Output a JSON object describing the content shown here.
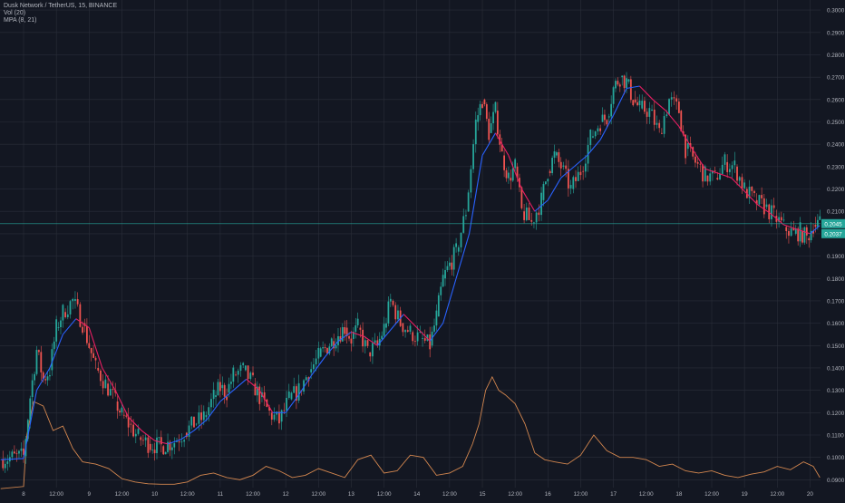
{
  "legend": {
    "symbol_line": "Dusk Network / TetherUS, 15, BINANCE",
    "volume_line": "Vol (20)",
    "ma_line": "MPA (8, 21)"
  },
  "price_tags": {
    "last_price": "0.2045",
    "ma_value": "0.2037"
  },
  "colors": {
    "background": "#131722",
    "grid": "#2a2e39",
    "candle_up": "#26a69a",
    "candle_down": "#ef5350",
    "ma_fast": "#2962ff",
    "ma_slow": "#e91e63",
    "volume_line": "#d4874f",
    "price_line": "#26a69a"
  },
  "chart_data": {
    "type": "line",
    "title": "Dusk Network / TetherUS, 15, BINANCE",
    "y_axis": {
      "labels": [
        "0.3000",
        "0.2900",
        "0.2800",
        "0.2700",
        "0.2600",
        "0.2500",
        "0.2400",
        "0.2300",
        "0.2200",
        "0.2100",
        "0.2000",
        "0.1900",
        "0.1800",
        "0.1700",
        "0.1600",
        "0.1500",
        "0.1400",
        "0.1300",
        "0.1200",
        "0.1100",
        "0.1000",
        "0.0900"
      ],
      "range": [
        0.0865,
        0.3045
      ],
      "side": "right"
    },
    "x_axis": {
      "labels": [
        "8",
        "12:00",
        "9",
        "12:00",
        "10",
        "12:00",
        "11",
        "12:00",
        "12",
        "12:00",
        "13",
        "12:00",
        "14",
        "12:00",
        "15",
        "12:00",
        "16",
        "12:00",
        "17",
        "12:00",
        "18",
        "12:00",
        "19",
        "12:00",
        "20"
      ],
      "range": [
        7.64,
        20.16
      ]
    },
    "grid": true,
    "series": [
      {
        "name": "price",
        "style": "candles",
        "x": [
          7.65,
          8.0,
          8.1,
          8.2,
          8.3,
          8.4,
          8.5,
          8.6,
          8.75,
          8.9,
          9.1,
          9.25,
          9.4,
          9.5,
          9.6,
          9.75,
          9.9,
          10.1,
          10.3,
          10.45,
          10.6,
          10.75,
          10.9,
          11.0,
          11.1,
          11.2,
          11.35,
          11.5,
          11.6,
          11.75,
          11.9,
          12.05,
          12.2,
          12.35,
          12.5,
          12.7,
          12.9,
          13.0,
          13.1,
          13.25,
          13.4,
          13.5,
          13.6,
          13.75,
          13.9,
          14.05,
          14.2,
          14.3,
          14.4,
          14.6,
          14.75,
          14.9,
          15.0,
          15.1,
          15.2,
          15.3,
          15.4,
          15.5,
          15.6,
          15.75,
          15.9,
          16.0,
          16.1,
          16.2,
          16.35,
          16.5,
          16.65,
          16.8,
          16.9,
          17.0,
          17.1,
          17.2,
          17.3,
          17.4,
          17.55,
          17.7,
          17.85,
          18.0,
          18.1,
          18.25,
          18.4,
          18.55,
          18.7,
          18.85,
          19.0,
          19.15,
          19.3,
          19.45,
          19.6,
          19.75,
          19.85,
          19.95,
          20.05,
          20.15
        ],
        "values": [
          0.0993,
          0.1005,
          0.127,
          0.148,
          0.135,
          0.139,
          0.158,
          0.165,
          0.17,
          0.16,
          0.14,
          0.133,
          0.125,
          0.119,
          0.115,
          0.109,
          0.106,
          0.105,
          0.107,
          0.111,
          0.115,
          0.118,
          0.127,
          0.131,
          0.129,
          0.137,
          0.139,
          0.133,
          0.127,
          0.12,
          0.116,
          0.126,
          0.13,
          0.138,
          0.145,
          0.152,
          0.158,
          0.153,
          0.158,
          0.147,
          0.15,
          0.158,
          0.17,
          0.16,
          0.156,
          0.153,
          0.15,
          0.163,
          0.18,
          0.192,
          0.21,
          0.25,
          0.26,
          0.245,
          0.255,
          0.235,
          0.225,
          0.23,
          0.21,
          0.205,
          0.215,
          0.228,
          0.235,
          0.23,
          0.22,
          0.228,
          0.243,
          0.25,
          0.252,
          0.265,
          0.27,
          0.268,
          0.26,
          0.256,
          0.255,
          0.245,
          0.26,
          0.255,
          0.238,
          0.232,
          0.226,
          0.225,
          0.232,
          0.23,
          0.22,
          0.215,
          0.212,
          0.208,
          0.203,
          0.2,
          0.201,
          0.198,
          0.204,
          0.2045
        ]
      },
      {
        "name": "MPA (8, 21)",
        "style": "line",
        "x": [
          7.65,
          8.0,
          8.2,
          8.4,
          8.6,
          8.8,
          9.0,
          9.2,
          9.4,
          9.6,
          9.8,
          10.0,
          10.2,
          10.4,
          10.6,
          10.8,
          11.0,
          11.2,
          11.4,
          11.6,
          11.8,
          12.0,
          12.2,
          12.4,
          12.6,
          12.8,
          13.0,
          13.2,
          13.4,
          13.6,
          13.8,
          14.0,
          14.2,
          14.4,
          14.6,
          14.8,
          15.0,
          15.2,
          15.4,
          15.6,
          15.8,
          16.0,
          16.2,
          16.4,
          16.6,
          16.8,
          17.0,
          17.2,
          17.4,
          17.6,
          17.8,
          18.0,
          18.2,
          18.4,
          18.6,
          18.8,
          19.0,
          19.2,
          19.4,
          19.6,
          19.8,
          20.0,
          20.15
        ],
        "values": [
          0.099,
          0.0995,
          0.13,
          0.14,
          0.155,
          0.162,
          0.158,
          0.14,
          0.13,
          0.118,
          0.112,
          0.1075,
          0.106,
          0.108,
          0.112,
          0.117,
          0.125,
          0.13,
          0.135,
          0.13,
          0.12,
          0.12,
          0.128,
          0.137,
          0.145,
          0.152,
          0.156,
          0.154,
          0.15,
          0.157,
          0.164,
          0.158,
          0.152,
          0.16,
          0.18,
          0.2,
          0.235,
          0.245,
          0.235,
          0.22,
          0.21,
          0.215,
          0.225,
          0.23,
          0.235,
          0.242,
          0.253,
          0.265,
          0.266,
          0.26,
          0.255,
          0.248,
          0.238,
          0.229,
          0.227,
          0.225,
          0.219,
          0.213,
          0.209,
          0.204,
          0.202,
          0.2,
          0.2037
        ]
      },
      {
        "name": "Vol (20)",
        "style": "line",
        "x": [
          7.65,
          8.0,
          8.05,
          8.15,
          8.3,
          8.45,
          8.6,
          8.75,
          8.9,
          9.1,
          9.3,
          9.5,
          9.7,
          9.9,
          10.1,
          10.3,
          10.5,
          10.7,
          10.9,
          11.1,
          11.3,
          11.5,
          11.7,
          11.9,
          12.1,
          12.3,
          12.5,
          12.7,
          12.9,
          13.0,
          13.1,
          13.3,
          13.5,
          13.7,
          13.9,
          14.1,
          14.3,
          14.5,
          14.7,
          14.85,
          14.95,
          15.05,
          15.15,
          15.25,
          15.35,
          15.5,
          15.65,
          15.8,
          15.95,
          16.1,
          16.3,
          16.5,
          16.7,
          16.9,
          17.1,
          17.3,
          17.5,
          17.7,
          17.9,
          18.1,
          18.3,
          18.5,
          18.7,
          18.9,
          19.1,
          19.3,
          19.5,
          19.7,
          19.9,
          20.05,
          20.15
        ],
        "values": [
          0.086,
          0.087,
          0.11,
          0.125,
          0.123,
          0.112,
          0.114,
          0.104,
          0.098,
          0.097,
          0.095,
          0.0905,
          0.089,
          0.0882,
          0.088,
          0.088,
          0.089,
          0.092,
          0.093,
          0.091,
          0.09,
          0.092,
          0.096,
          0.094,
          0.091,
          0.092,
          0.095,
          0.093,
          0.091,
          0.095,
          0.099,
          0.101,
          0.093,
          0.094,
          0.101,
          0.1,
          0.092,
          0.093,
          0.096,
          0.106,
          0.115,
          0.13,
          0.136,
          0.13,
          0.128,
          0.124,
          0.115,
          0.102,
          0.099,
          0.098,
          0.097,
          0.101,
          0.11,
          0.103,
          0.1,
          0.1,
          0.099,
          0.096,
          0.097,
          0.094,
          0.093,
          0.094,
          0.092,
          0.091,
          0.0925,
          0.0935,
          0.096,
          0.0945,
          0.098,
          0.096,
          0.091
        ]
      }
    ],
    "price_line_value": 0.2045
  }
}
